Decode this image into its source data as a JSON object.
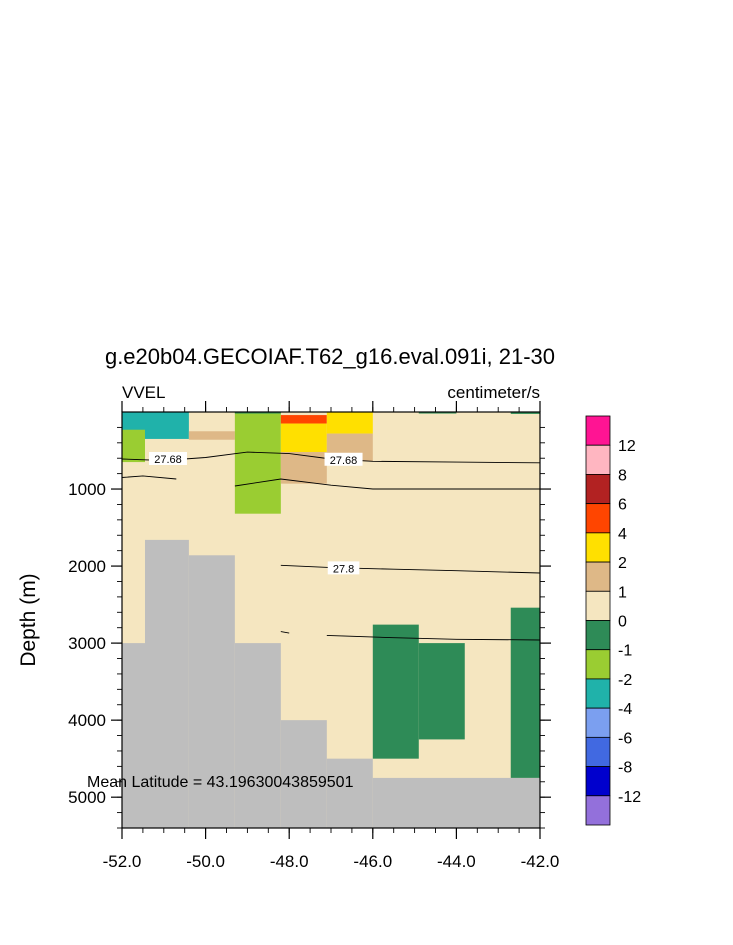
{
  "chart_data": {
    "type": "heatmap",
    "title": "g.e20b04.GECOIAF.T62_g16.eval.091i, 21-30",
    "left_label": "VVEL",
    "right_label": "centimeter/s",
    "xlabel": "",
    "ylabel": "Depth (m)",
    "xlim": [
      -52.0,
      -42.0
    ],
    "ylim": [
      5400,
      0
    ],
    "xticks": [
      -52.0,
      -50.0,
      -48.0,
      -46.0,
      -44.0,
      -42.0
    ],
    "xtick_labels": [
      "-52.0",
      "-50.0",
      "-48.0",
      "-46.0",
      "-44.0",
      "-42.0"
    ],
    "yticks": [
      1000,
      2000,
      3000,
      4000,
      5000
    ],
    "ytick_labels": [
      "1000",
      "2000",
      "3000",
      "4000",
      "5000"
    ],
    "annotation": "Mean Latitude = 43.19630043859501",
    "background_value_color": "#f5e6c0",
    "land_color": "#bebebe",
    "colorbar": {
      "labels": [
        "12",
        "8",
        "6",
        "4",
        "2",
        "1",
        "0",
        "-1",
        "-2",
        "-4",
        "-6",
        "-8",
        "-12"
      ],
      "colors": [
        "#ff1493",
        "#ffb6c1",
        "#b22222",
        "#ff4500",
        "#ffe000",
        "#deb887",
        "#f5e6c0",
        "#2e8b57",
        "#9acd32",
        "#20b2aa",
        "#7b9ff0",
        "#4169e1",
        "#0000cd",
        "#9370db"
      ]
    },
    "cells": [
      {
        "x": [
          -52.0,
          -50.4
        ],
        "depth": [
          0,
          350
        ],
        "color": "#20b2aa"
      },
      {
        "x": [
          -52.0,
          -51.45
        ],
        "depth": [
          230,
          650
        ],
        "color": "#9acd32"
      },
      {
        "x": [
          -51.45,
          -50.4
        ],
        "depth": [
          350,
          370
        ],
        "color": "#f5e6c0"
      },
      {
        "x": [
          -50.4,
          -49.3
        ],
        "depth": [
          250,
          360
        ],
        "color": "#deb887"
      },
      {
        "x": [
          -49.3,
          -48.2
        ],
        "depth": [
          0,
          1320
        ],
        "color": "#9acd32"
      },
      {
        "x": [
          -48.2,
          -47.1
        ],
        "depth": [
          40,
          150
        ],
        "color": "#ff4500"
      },
      {
        "x": [
          -48.2,
          -47.1
        ],
        "depth": [
          150,
          520
        ],
        "color": "#ffe000"
      },
      {
        "x": [
          -47.1,
          -46.0
        ],
        "depth": [
          0,
          280
        ],
        "color": "#ffe000"
      },
      {
        "x": [
          -48.2,
          -47.1
        ],
        "depth": [
          520,
          930
        ],
        "color": "#deb887"
      },
      {
        "x": [
          -47.1,
          -46.0
        ],
        "depth": [
          280,
          640
        ],
        "color": "#deb887"
      },
      {
        "x": [
          -49.3,
          -48.2
        ],
        "depth": [
          0,
          20
        ],
        "color": "#2e8b57"
      },
      {
        "x": [
          -44.9,
          -44.0
        ],
        "depth": [
          0,
          20
        ],
        "color": "#2e8b57"
      },
      {
        "x": [
          -42.7,
          -42.0
        ],
        "depth": [
          0,
          25
        ],
        "color": "#2e8b57"
      },
      {
        "x": [
          -46.0,
          -44.9
        ],
        "depth": [
          2760,
          4500
        ],
        "color": "#2e8b57"
      },
      {
        "x": [
          -44.9,
          -43.8
        ],
        "depth": [
          3000,
          4250
        ],
        "color": "#2e8b57"
      },
      {
        "x": [
          -42.7,
          -42.0
        ],
        "depth": [
          2540,
          4750
        ],
        "color": "#2e8b57"
      }
    ],
    "land": [
      {
        "x": [
          -52.0,
          -51.45
        ],
        "depth": [
          3000,
          5400
        ]
      },
      {
        "x": [
          -51.45,
          -50.4
        ],
        "depth": [
          1660,
          5400
        ]
      },
      {
        "x": [
          -50.4,
          -49.3
        ],
        "depth": [
          1860,
          5400
        ]
      },
      {
        "x": [
          -49.3,
          -48.2
        ],
        "depth": [
          3000,
          5400
        ]
      },
      {
        "x": [
          -48.2,
          -47.1
        ],
        "depth": [
          4000,
          5400
        ]
      },
      {
        "x": [
          -47.1,
          -46.0
        ],
        "depth": [
          4500,
          5400
        ]
      },
      {
        "x": [
          -46.0,
          -42.0
        ],
        "depth": [
          4750,
          5400
        ]
      }
    ],
    "contours": [
      {
        "label": "27.68",
        "points": [
          [
            -52.0,
            610
          ],
          [
            -51.0,
            630
          ],
          [
            -50.0,
            590
          ],
          [
            -49.0,
            520
          ],
          [
            -48.0,
            540
          ],
          [
            -47.0,
            610
          ],
          [
            -46.0,
            640
          ],
          [
            -44.0,
            650
          ],
          [
            -42.0,
            660
          ]
        ],
        "label_positions": [
          [
            -50.9,
            610
          ],
          [
            -46.7,
            620
          ]
        ]
      },
      {
        "label": "",
        "points": [
          [
            -52.0,
            850
          ],
          [
            -51.5,
            830
          ],
          [
            -50.7,
            870
          ]
        ]
      },
      {
        "label": "",
        "points": [
          [
            -49.3,
            960
          ],
          [
            -48.2,
            870
          ],
          [
            -47.0,
            950
          ],
          [
            -46.0,
            1000
          ],
          [
            -44.0,
            1000
          ],
          [
            -42.0,
            1000
          ]
        ]
      },
      {
        "label": "27.8",
        "points": [
          [
            -48.2,
            1990
          ],
          [
            -47.0,
            2020
          ],
          [
            -45.5,
            2040
          ],
          [
            -44.0,
            2060
          ],
          [
            -42.0,
            2090
          ]
        ],
        "label_positions": [
          [
            -46.7,
            2030
          ]
        ]
      },
      {
        "label": "",
        "points": [
          [
            -48.2,
            2850
          ],
          [
            -48.0,
            2870
          ]
        ]
      },
      {
        "label": "",
        "points": [
          [
            -47.1,
            2900
          ],
          [
            -45.5,
            2930
          ],
          [
            -44.0,
            2950
          ],
          [
            -42.0,
            2960
          ]
        ]
      }
    ]
  }
}
